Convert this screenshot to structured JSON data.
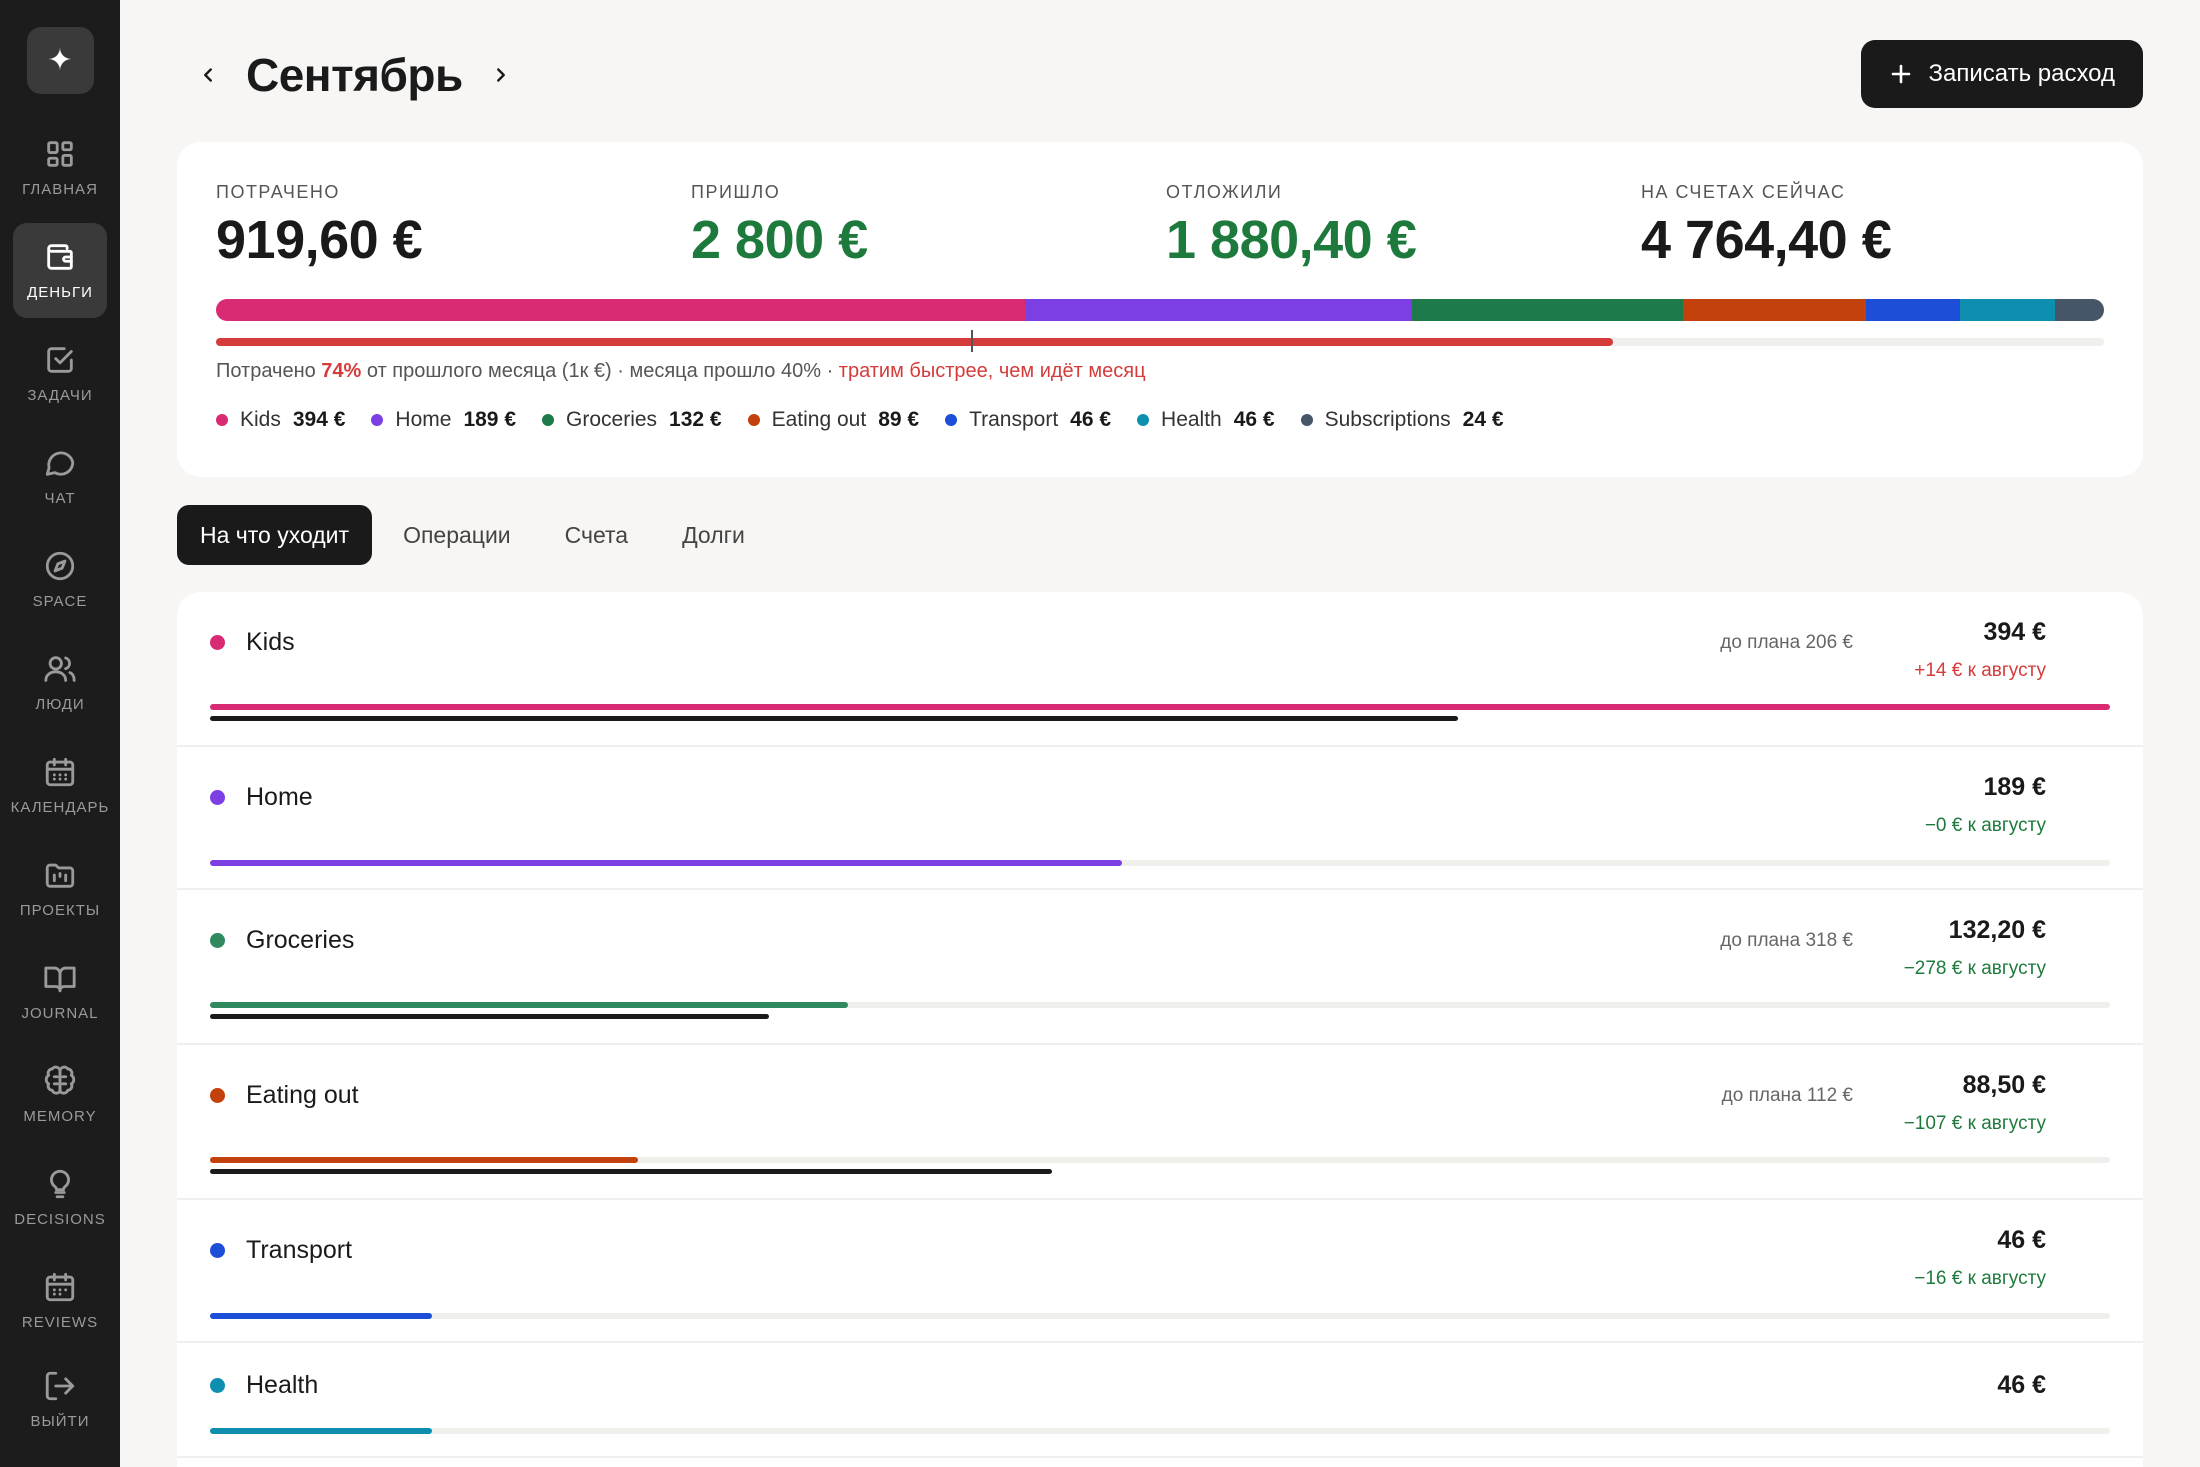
{
  "sidebar": {
    "logo": "✦",
    "items": [
      {
        "label": "Главная",
        "icon": "grid-icon"
      },
      {
        "label": "Деньги",
        "icon": "wallet-icon",
        "active": true
      },
      {
        "label": "Задачи",
        "icon": "checkbox-icon"
      },
      {
        "label": "Чат",
        "icon": "chat-icon"
      },
      {
        "label": "Space",
        "icon": "compass-icon"
      },
      {
        "label": "Люди",
        "icon": "users-icon"
      },
      {
        "label": "Календарь",
        "icon": "calendar-icon"
      },
      {
        "label": "Проекты",
        "icon": "folder-icon"
      },
      {
        "label": "Journal",
        "icon": "book-icon"
      },
      {
        "label": "Memory",
        "icon": "brain-icon"
      },
      {
        "label": "Decisions",
        "icon": "lightbulb-icon"
      },
      {
        "label": "Reviews",
        "icon": "review-calendar-icon"
      }
    ],
    "logout": {
      "label": "Выйти",
      "icon": "logout-icon"
    }
  },
  "header": {
    "title": "Сентябрь",
    "add_button": "Записать расход"
  },
  "summary": {
    "stats": [
      {
        "label": "Потрачено",
        "value": "919,60 €"
      },
      {
        "label": "Пришло",
        "value": "2 800 €",
        "color": "#1e7a3c"
      },
      {
        "label": "Отложили",
        "value": "1 880,40 €",
        "color": "#1e7a3c"
      },
      {
        "label": "На счетах сейчас",
        "value": "4 764,40 €"
      }
    ],
    "pace": {
      "spent_fraction": 0.74,
      "month_fraction": 0.4,
      "note_prefix": "Потрачено ",
      "note_pct": "74%",
      "note_mid": " от прошлого месяца (1к €) · месяца прошло 40% · ",
      "note_warning": "тратим быстрее, чем идёт месяц"
    },
    "legend": [
      {
        "name": "Kids",
        "amount": "394 €",
        "value": 394,
        "color": "#d92b74"
      },
      {
        "name": "Home",
        "amount": "189 €",
        "value": 189,
        "color": "#7b3fe4"
      },
      {
        "name": "Groceries",
        "amount": "132 €",
        "value": 132,
        "color": "#1e7a4a"
      },
      {
        "name": "Eating out",
        "amount": "89 €",
        "value": 89,
        "color": "#c2410c"
      },
      {
        "name": "Transport",
        "amount": "46 €",
        "value": 46,
        "color": "#1d4ed8"
      },
      {
        "name": "Health",
        "amount": "46 €",
        "value": 46,
        "color": "#0e8fb0"
      },
      {
        "name": "Subscriptions",
        "amount": "24 €",
        "value": 24,
        "color": "#475569"
      }
    ]
  },
  "tabs": [
    {
      "label": "На что уходит",
      "active": true
    },
    {
      "label": "Операции"
    },
    {
      "label": "Счета"
    },
    {
      "label": "Долги"
    }
  ],
  "categories": [
    {
      "name": "Kids",
      "color": "#d92b74",
      "amount": "394 €",
      "plan": "до плана 206 €",
      "delta": "+14 € к августу",
      "delta_type": "red",
      "fill": 1.0,
      "ref": 0.657
    },
    {
      "name": "Home",
      "color": "#7b3fe4",
      "amount": "189 €",
      "plan": "",
      "delta": "−0 € к августу",
      "delta_type": "green",
      "fill": 0.48,
      "ref": null
    },
    {
      "name": "Groceries",
      "color": "#2f8a5f",
      "amount": "132,20 €",
      "plan": "до плана 318 €",
      "delta": "−278 € к августу",
      "delta_type": "green",
      "fill": 0.336,
      "ref": 0.294
    },
    {
      "name": "Eating out",
      "color": "#c2410c",
      "amount": "88,50 €",
      "plan": "до плана 112 €",
      "delta": "−107 € к августу",
      "delta_type": "green",
      "fill": 0.225,
      "ref": 0.443
    },
    {
      "name": "Transport",
      "color": "#1d4ed8",
      "amount": "46 €",
      "plan": "",
      "delta": "−16 € к августу",
      "delta_type": "green",
      "fill": 0.117,
      "ref": null
    },
    {
      "name": "Health",
      "color": "#0e8fb0",
      "amount": "46 €",
      "plan": "",
      "delta": "",
      "delta_type": "green",
      "fill": 0.117,
      "ref": null
    }
  ]
}
